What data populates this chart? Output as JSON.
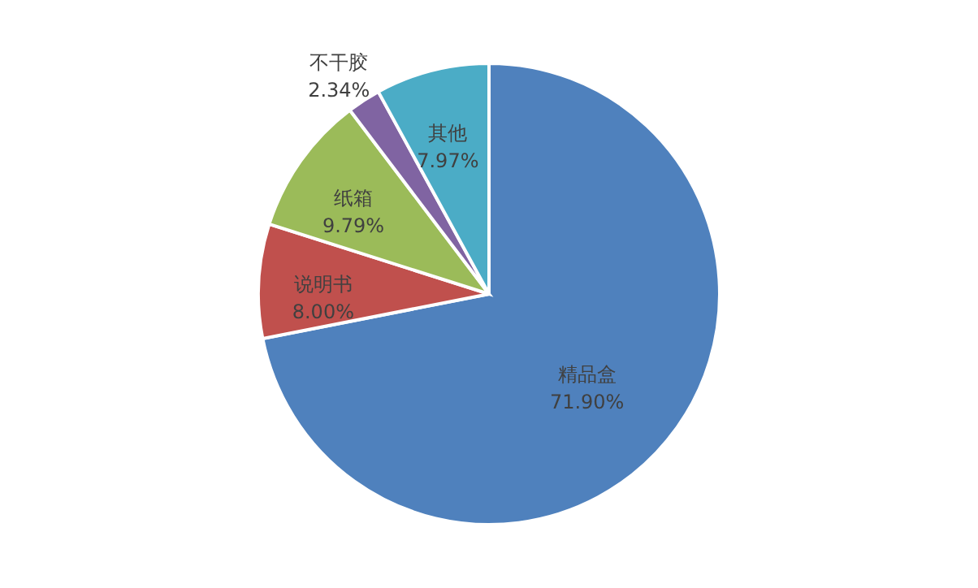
{
  "chart_data": {
    "type": "pie",
    "categories": [
      "精品盒",
      "说明书",
      "纸箱",
      "不干胶",
      "其他"
    ],
    "values": [
      71.9,
      8.0,
      9.79,
      2.34,
      7.97
    ],
    "colors": [
      "#4f81bd",
      "#c0504d",
      "#9bbb59",
      "#8064a2",
      "#4bacc6"
    ],
    "value_labels": [
      "71.90%",
      "8.00%",
      "9.79%",
      "2.34%",
      "7.97%"
    ]
  }
}
